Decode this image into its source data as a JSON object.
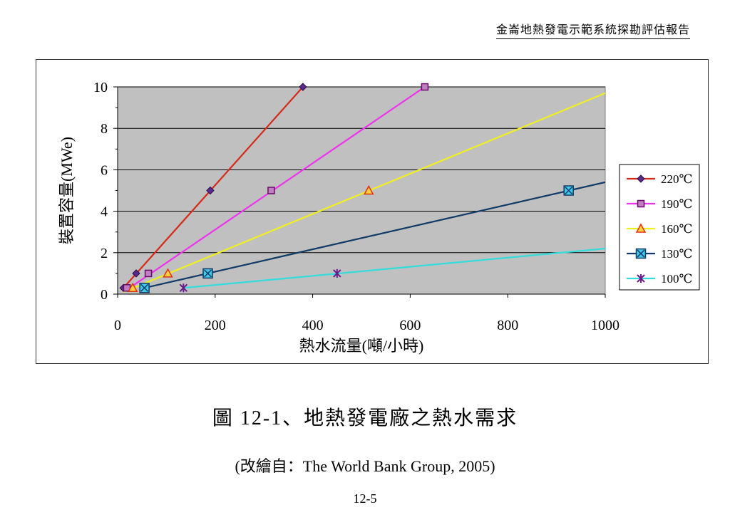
{
  "header": {
    "title": "金崙地熱發電示範系統探勘評估報告"
  },
  "figure": {
    "title": "圖 12-1、地熱發電廠之熱水需求",
    "source": "(改繪自：The World Bank Group, 2005)",
    "page_number": "12-5"
  },
  "colors": {
    "plot_background": "#c0c0c0",
    "s220": "#d42a1a",
    "s190": "#ee33ee",
    "s160": "#f0f020",
    "s130": "#123a66",
    "s100": "#33dddd"
  },
  "chart_data": {
    "type": "line",
    "title": "",
    "xlabel": "熱水流量(噸/小時)",
    "ylabel": "裝置容量(MWe)",
    "xlim": [
      0,
      1000
    ],
    "ylim": [
      0,
      10
    ],
    "xticks": [
      0,
      200,
      400,
      600,
      800,
      1000
    ],
    "yticks": [
      0,
      2,
      4,
      6,
      8,
      10
    ],
    "grid": "horizontal",
    "legend_position": "right",
    "series": [
      {
        "name": "220℃",
        "marker": "diamond",
        "points": [
          [
            12,
            0.3
          ],
          [
            38,
            1
          ],
          [
            190,
            5
          ],
          [
            380,
            10
          ]
        ],
        "line": [
          [
            12,
            0.3
          ],
          [
            380,
            10
          ]
        ]
      },
      {
        "name": "190℃",
        "marker": "square",
        "points": [
          [
            19,
            0.3
          ],
          [
            63,
            1
          ],
          [
            315,
            5
          ],
          [
            630,
            10
          ]
        ],
        "line": [
          [
            12,
            0.1
          ],
          [
            630,
            10
          ]
        ]
      },
      {
        "name": "160℃",
        "marker": "triangle",
        "points": [
          [
            31,
            0.3
          ],
          [
            103,
            1
          ],
          [
            515,
            5
          ]
        ],
        "line": [
          [
            12,
            0.1
          ],
          [
            1000,
            9.7
          ]
        ]
      },
      {
        "name": "130℃",
        "marker": "xsquare",
        "points": [
          [
            55,
            0.3
          ],
          [
            185,
            1
          ],
          [
            925,
            5
          ]
        ],
        "line": [
          [
            55,
            0.3
          ],
          [
            1000,
            5.4
          ]
        ]
      },
      {
        "name": "100℃",
        "marker": "star",
        "points": [
          [
            135,
            0.3
          ],
          [
            450,
            1
          ]
        ],
        "line": [
          [
            135,
            0.3
          ],
          [
            1000,
            2.2
          ]
        ]
      }
    ]
  }
}
